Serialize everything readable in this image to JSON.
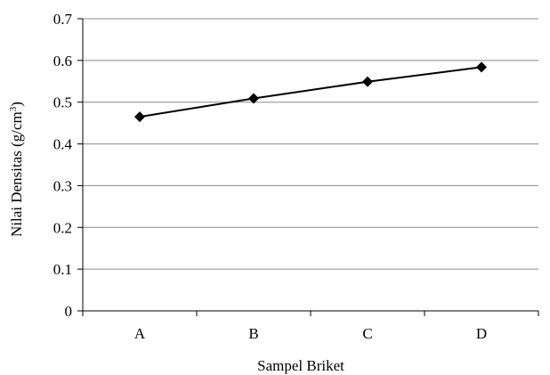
{
  "chart_data": {
    "type": "line",
    "title": "",
    "xlabel": "Sampel Briket",
    "ylabel": "Nilai Densitas (g/cm",
    "ylabel_superscript": "3",
    "ylabel_close": ")",
    "categories": [
      "A",
      "B",
      "C",
      "D"
    ],
    "series": [
      {
        "values": [
          0.465,
          0.509,
          0.549,
          0.584
        ]
      }
    ],
    "ylim": [
      0,
      0.7
    ],
    "yticks": [
      "0",
      "0.1",
      "0.2",
      "0.3",
      "0.4",
      "0.5",
      "0.6",
      "0.7"
    ],
    "grid": true,
    "legend": "none",
    "line_color": "#000000",
    "marker": "diamond"
  }
}
